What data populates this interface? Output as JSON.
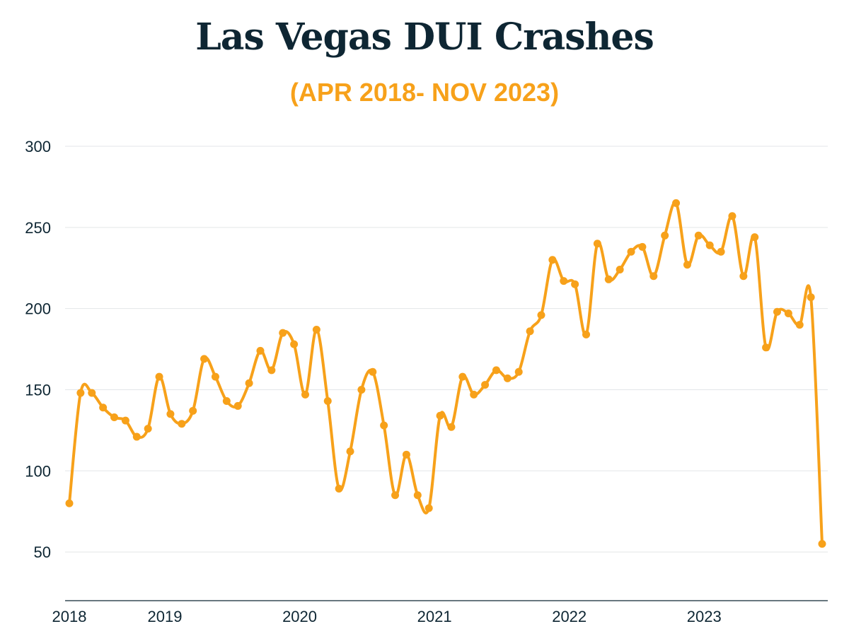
{
  "chart_data": {
    "type": "line",
    "title": "Las Vegas DUI Crashes",
    "subtitle": "(APR 2018- NOV 2023)",
    "xlabel": "",
    "ylabel": "",
    "ylim": [
      20,
      300
    ],
    "y_ticks": [
      50,
      100,
      150,
      200,
      250,
      300
    ],
    "x_tick_labels": [
      "2018",
      "2019",
      "2020",
      "2021",
      "2022",
      "2023"
    ],
    "x_tick_months": [
      0,
      8.5,
      20.5,
      32.5,
      44.5,
      56.5
    ],
    "grid": true,
    "line_color": "#f7a11a",
    "series": [
      {
        "name": "Las Vegas DUI Crashes",
        "months": [
          "Apr 2018",
          "May 2018",
          "Jun 2018",
          "Jul 2018",
          "Aug 2018",
          "Sep 2018",
          "Oct 2018",
          "Nov 2018",
          "Dec 2018",
          "Jan 2019",
          "Feb 2019",
          "Mar 2019",
          "Apr 2019",
          "May 2019",
          "Jun 2019",
          "Jul 2019",
          "Aug 2019",
          "Sep 2019",
          "Oct 2019",
          "Nov 2019",
          "Dec 2019",
          "Jan 2020",
          "Feb 2020",
          "Mar 2020",
          "Apr 2020",
          "May 2020",
          "Jun 2020",
          "Jul 2020",
          "Aug 2020",
          "Sep 2020",
          "Oct 2020",
          "Nov 2020",
          "Dec 2020",
          "Jan 2021",
          "Feb 2021",
          "Mar 2021",
          "Apr 2021",
          "May 2021",
          "Jun 2021",
          "Jul 2021",
          "Aug 2021",
          "Sep 2021",
          "Oct 2021",
          "Nov 2021",
          "Dec 2021",
          "Jan 2022",
          "Feb 2022",
          "Mar 2022",
          "Apr 2022",
          "May 2022",
          "Jun 2022",
          "Jul 2022",
          "Aug 2022",
          "Sep 2022",
          "Oct 2022",
          "Nov 2022",
          "Dec 2022",
          "Jan 2023",
          "Feb 2023",
          "Mar 2023",
          "Apr 2023",
          "May 2023",
          "Jun 2023",
          "Jul 2023",
          "Aug 2023",
          "Sep 2023",
          "Oct 2023",
          "Nov 2023"
        ],
        "values": [
          80,
          148,
          148,
          139,
          133,
          131,
          121,
          126,
          158,
          135,
          129,
          137,
          169,
          158,
          143,
          140,
          154,
          174,
          162,
          185,
          178,
          147,
          187,
          143,
          89,
          112,
          150,
          161,
          128,
          85,
          110,
          85,
          77,
          134,
          127,
          158,
          147,
          153,
          162,
          157,
          161,
          186,
          196,
          230,
          217,
          215,
          184,
          240,
          218,
          224,
          235,
          238,
          220,
          245,
          265,
          227,
          245,
          239,
          235,
          257,
          220,
          244,
          176,
          198,
          197,
          190,
          207,
          55
        ]
      }
    ]
  }
}
